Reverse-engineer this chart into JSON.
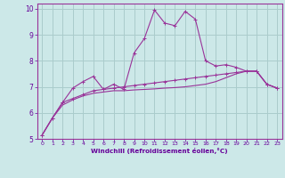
{
  "background_color": "#cce8e8",
  "grid_color": "#aacccc",
  "line_color": "#993399",
  "spine_color": "#993399",
  "xlabel": "Windchill (Refroidissement éolien,°C)",
  "xlabel_color": "#660099",
  "tick_color": "#660099",
  "xlim": [
    -0.5,
    23.5
  ],
  "ylim": [
    5,
    10.2
  ],
  "yticks": [
    5,
    6,
    7,
    8,
    9,
    10
  ],
  "xticks": [
    0,
    1,
    2,
    3,
    4,
    5,
    6,
    7,
    8,
    9,
    10,
    11,
    12,
    13,
    14,
    15,
    16,
    17,
    18,
    19,
    20,
    21,
    22,
    23
  ],
  "series1_x": [
    0,
    1,
    2,
    3,
    4,
    5,
    6,
    7,
    8,
    9,
    10,
    11,
    12,
    13,
    14,
    15,
    16,
    17,
    18,
    19,
    20,
    21,
    22,
    23
  ],
  "series1_y": [
    5.15,
    5.8,
    6.4,
    6.95,
    7.2,
    7.4,
    6.9,
    7.1,
    6.9,
    8.3,
    8.85,
    9.95,
    9.45,
    9.35,
    9.9,
    9.6,
    8.0,
    7.8,
    7.85,
    7.75,
    7.6,
    7.6,
    7.1,
    6.95
  ],
  "series2_x": [
    0,
    1,
    2,
    3,
    4,
    5,
    6,
    7,
    8,
    9,
    10,
    11,
    12,
    13,
    14,
    15,
    16,
    17,
    18,
    19,
    20,
    21,
    22,
    23
  ],
  "series2_y": [
    5.15,
    5.8,
    6.4,
    6.55,
    6.7,
    6.85,
    6.9,
    6.95,
    7.0,
    7.05,
    7.1,
    7.15,
    7.2,
    7.25,
    7.3,
    7.35,
    7.4,
    7.45,
    7.5,
    7.55,
    7.6,
    7.6,
    7.1,
    6.95
  ],
  "series3_x": [
    0,
    1,
    2,
    3,
    4,
    5,
    6,
    7,
    8,
    9,
    10,
    11,
    12,
    13,
    14,
    15,
    16,
    17,
    18,
    19,
    20,
    21,
    22,
    23
  ],
  "series3_y": [
    5.15,
    5.8,
    6.3,
    6.5,
    6.65,
    6.75,
    6.8,
    6.85,
    6.85,
    6.88,
    6.9,
    6.92,
    6.95,
    6.97,
    7.0,
    7.05,
    7.1,
    7.2,
    7.35,
    7.5,
    7.6,
    7.6,
    7.1,
    6.95
  ]
}
